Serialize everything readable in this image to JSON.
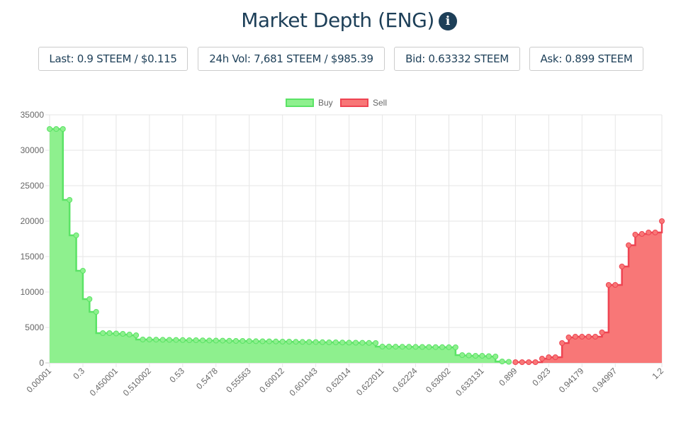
{
  "header": {
    "title": "Market Depth (ENG)",
    "info_icon": "i"
  },
  "stats": {
    "last": "Last: 0.9 STEEM / $0.115",
    "volume": "24h Vol: 7,681 STEEM / $985.39",
    "bid": "Bid: 0.63332 STEEM",
    "ask": "Ask: 0.899 STEEM"
  },
  "colors": {
    "buy_fill": "#8ef08e",
    "buy_line": "#5be366",
    "sell_fill": "#f87777",
    "sell_line": "#ee4452",
    "title": "#1d3f58"
  },
  "chart_data": {
    "type": "area",
    "stepped": true,
    "legend": [
      {
        "label": "Buy"
      },
      {
        "label": "Sell"
      }
    ],
    "legend_position": "top",
    "ylim": [
      0,
      35000
    ],
    "y_ticks": [
      "0",
      "5000",
      "10000",
      "15000",
      "20000",
      "25000",
      "30000",
      "35000"
    ],
    "y_tick_values": [
      0,
      5000,
      10000,
      15000,
      20000,
      25000,
      30000,
      35000
    ],
    "point_count": 93,
    "x_ticks": [
      {
        "index": 0,
        "label": "0.00001"
      },
      {
        "index": 5,
        "label": "0.3"
      },
      {
        "index": 10,
        "label": "0.450001"
      },
      {
        "index": 15,
        "label": "0.510002"
      },
      {
        "index": 20,
        "label": "0.53"
      },
      {
        "index": 25,
        "label": "0.5478"
      },
      {
        "index": 30,
        "label": "0.55563"
      },
      {
        "index": 35,
        "label": "0.60012"
      },
      {
        "index": 40,
        "label": "0.601043"
      },
      {
        "index": 45,
        "label": "0.62014"
      },
      {
        "index": 50,
        "label": "0.622011"
      },
      {
        "index": 55,
        "label": "0.62224"
      },
      {
        "index": 60,
        "label": "0.63002"
      },
      {
        "index": 65,
        "label": "0.633131"
      },
      {
        "index": 70,
        "label": "0.899"
      },
      {
        "index": 75,
        "label": "0.923"
      },
      {
        "index": 80,
        "label": "0.94179"
      },
      {
        "index": 85,
        "label": "0.94997"
      },
      {
        "index": 92,
        "label": "1.2"
      }
    ],
    "series": [
      {
        "name": "Buy",
        "start_index": 0,
        "values": [
          33000,
          33000,
          33000,
          23000,
          18000,
          13000,
          9000,
          7200,
          4200,
          4200,
          4150,
          4100,
          4000,
          3900,
          3300,
          3300,
          3280,
          3260,
          3250,
          3240,
          3220,
          3200,
          3200,
          3180,
          3160,
          3150,
          3140,
          3120,
          3100,
          3100,
          3080,
          3060,
          3050,
          3040,
          3020,
          3000,
          3000,
          2980,
          2960,
          2950,
          2940,
          2920,
          2900,
          2900,
          2880,
          2860,
          2850,
          2840,
          2820,
          2800,
          2300,
          2300,
          2290,
          2280,
          2270,
          2260,
          2250,
          2240,
          2230,
          2220,
          2210,
          2200,
          1100,
          1050,
          1000,
          1000,
          950,
          900,
          200,
          150
        ]
      },
      {
        "name": "Sell",
        "start_index": 70,
        "values": [
          100,
          100,
          100,
          100,
          600,
          800,
          800,
          2800,
          3600,
          3700,
          3700,
          3700,
          3700,
          4300,
          11000,
          11000,
          13600,
          16600,
          18100,
          18200,
          18400,
          18400,
          20000
        ]
      }
    ]
  }
}
